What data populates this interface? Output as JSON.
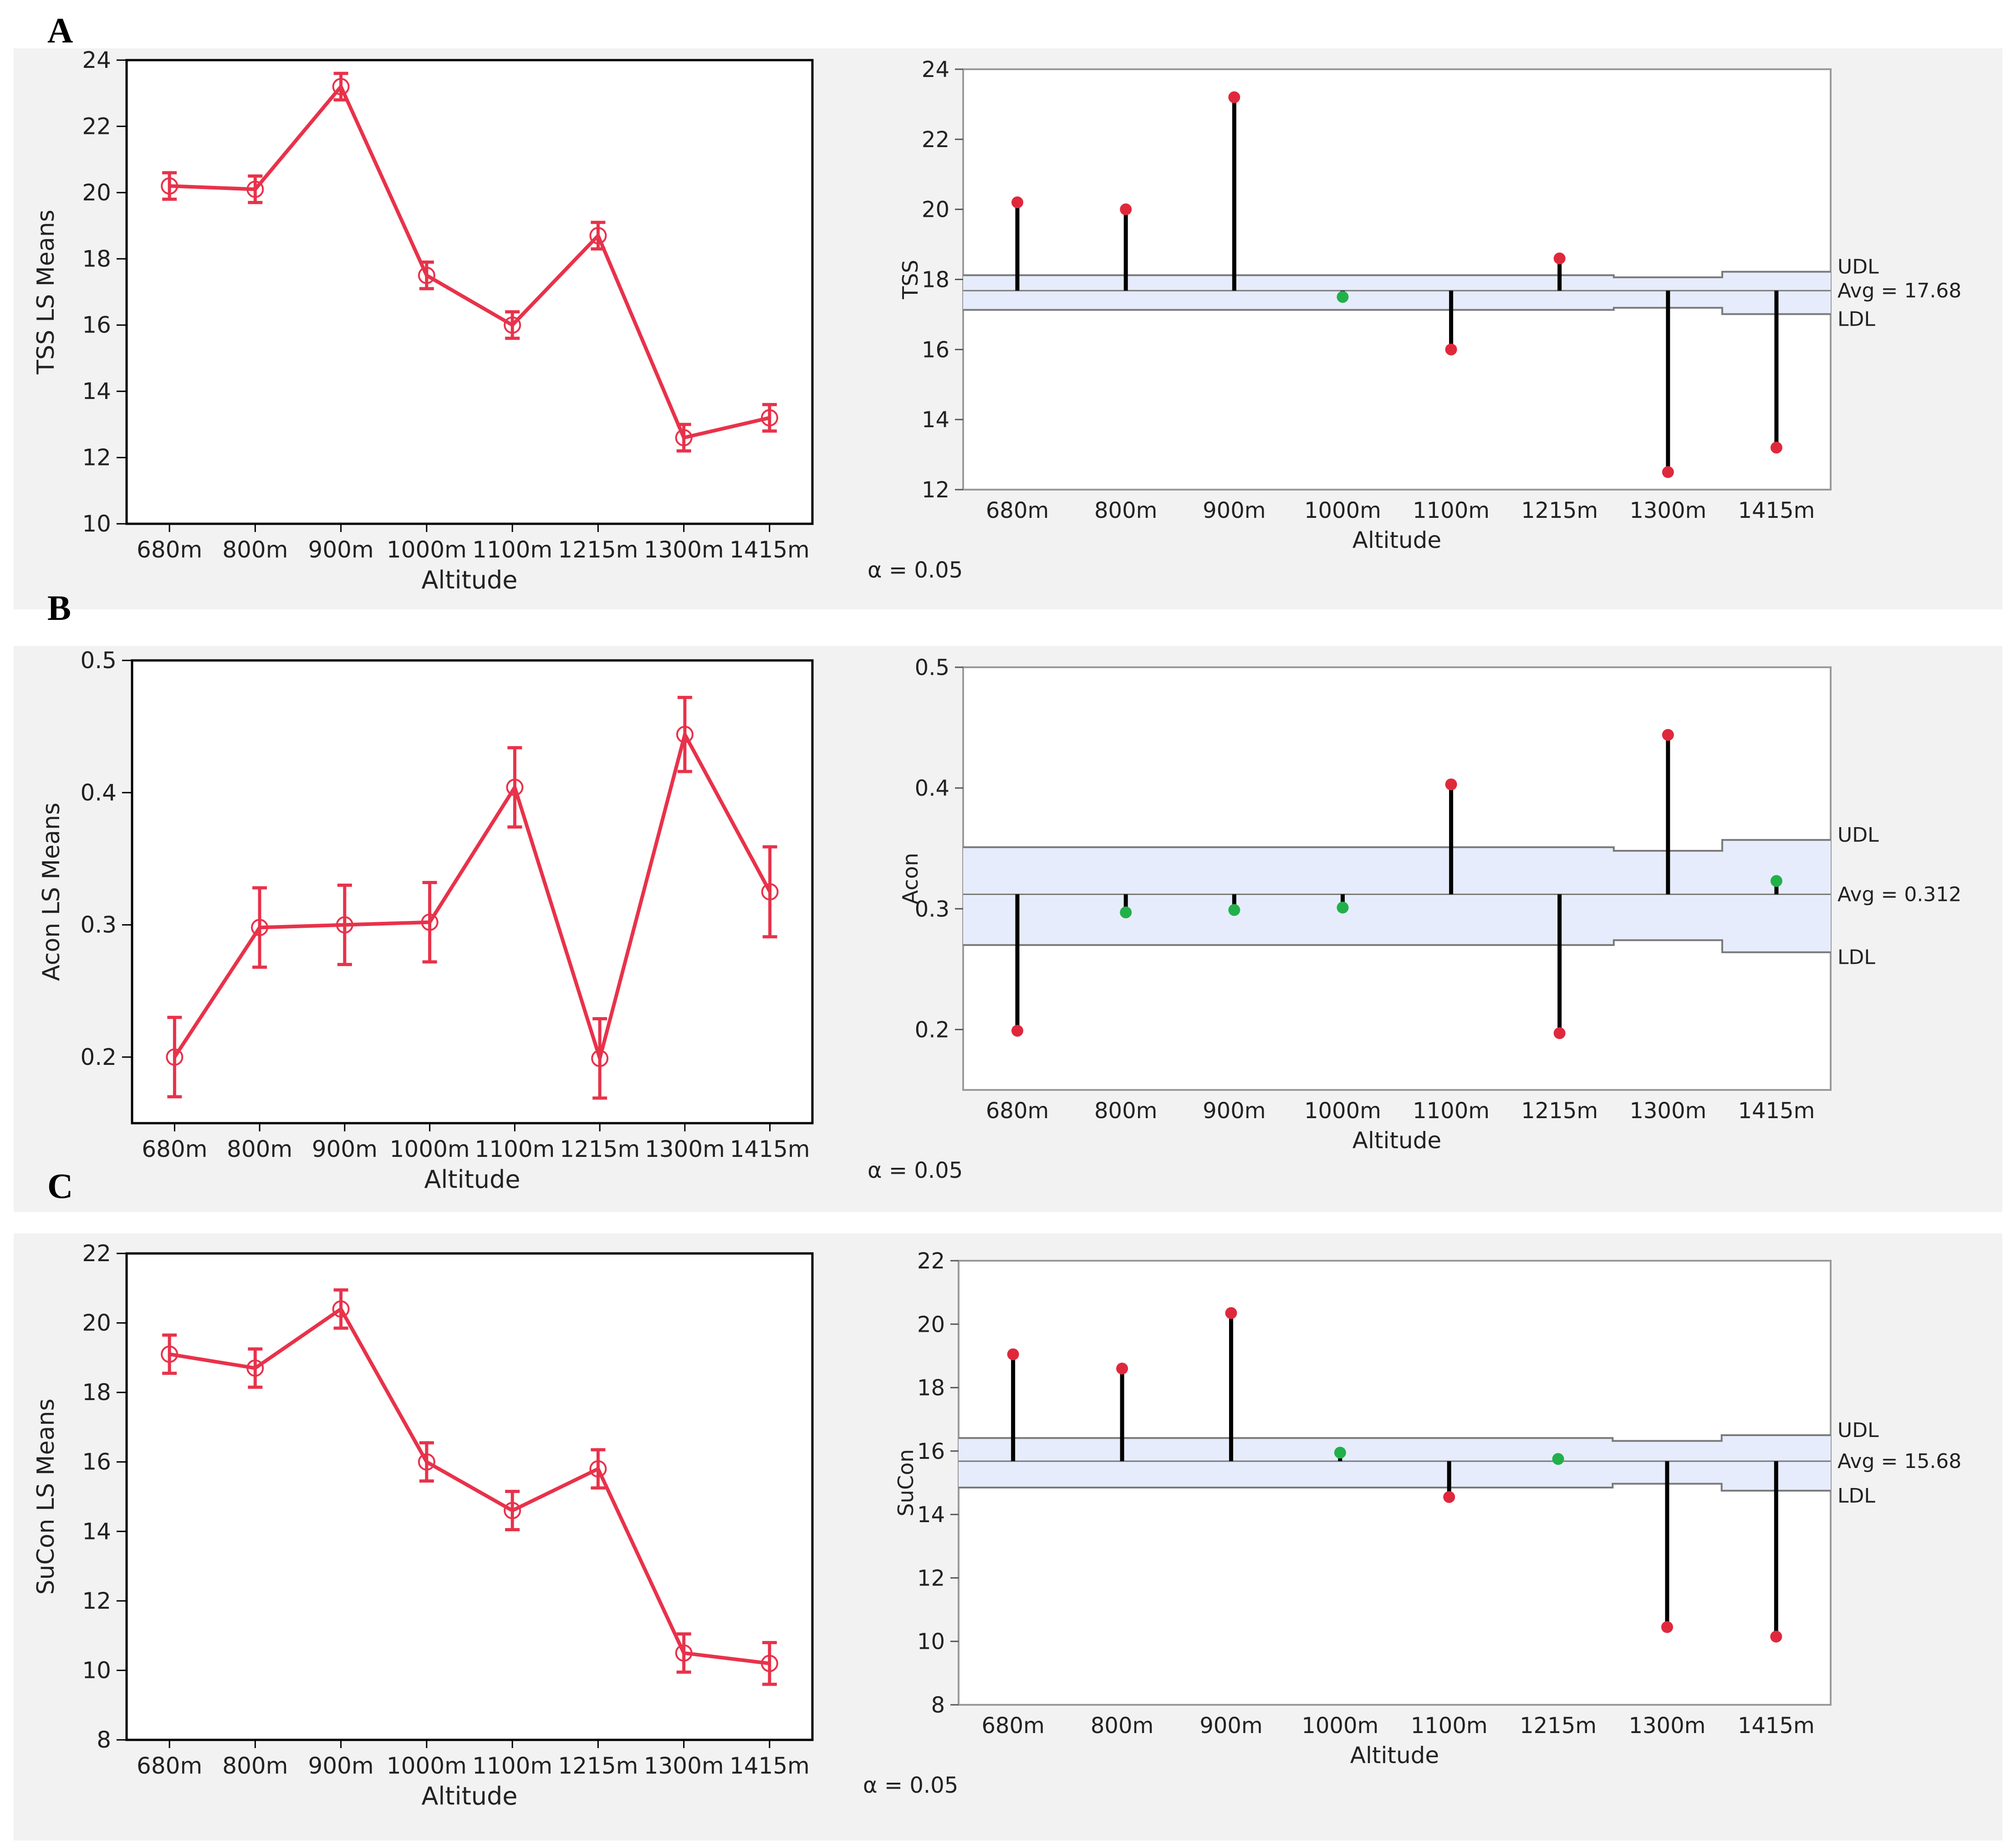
{
  "panels": [
    {
      "letter": "A",
      "ls_means": {
        "ylabel": "TSS LS Means",
        "xlabel": "Altitude",
        "ylim": [
          10,
          24
        ],
        "yticks": [
          10,
          12,
          14,
          16,
          18,
          20,
          22,
          24
        ],
        "categories": [
          "680m",
          "800m",
          "900m",
          "1000m",
          "1100m",
          "1215m",
          "1300m",
          "1415m"
        ],
        "values": [
          20.2,
          20.1,
          23.2,
          17.5,
          16.0,
          18.7,
          12.6,
          13.2
        ],
        "error": [
          0.4,
          0.4,
          0.4,
          0.4,
          0.4,
          0.4,
          0.4,
          0.4
        ]
      },
      "anom": {
        "ylabel": "TSS",
        "xlabel": "Altitude",
        "ylim": [
          12,
          24
        ],
        "yticks": [
          12,
          14,
          16,
          18,
          20,
          22,
          24
        ],
        "categories": [
          "680m",
          "800m",
          "900m",
          "1000m",
          "1100m",
          "1215m",
          "1300m",
          "1415m"
        ],
        "values": [
          20.2,
          20.0,
          23.2,
          17.5,
          16.0,
          18.6,
          12.5,
          13.2
        ],
        "avg": 17.68,
        "udl": [
          18.12,
          18.12,
          18.12,
          18.12,
          18.12,
          18.12,
          18.06,
          18.22
        ],
        "ldl": [
          17.13,
          17.13,
          17.13,
          17.13,
          17.13,
          17.13,
          17.19,
          17.01
        ],
        "udl_label": "UDL",
        "avg_label": "Avg = 17.68",
        "ldl_label": "LDL",
        "alpha_label": "α = 0.05"
      }
    },
    {
      "letter": "B",
      "ls_means": {
        "ylabel": "Acon LS Means",
        "xlabel": "Altitude",
        "ylim": [
          0.15,
          0.5
        ],
        "yticks": [
          0.2,
          0.3,
          0.4,
          0.5
        ],
        "categories": [
          "680m",
          "800m",
          "900m",
          "1000m",
          "1100m",
          "1215m",
          "1300m",
          "1415m"
        ],
        "values": [
          0.2,
          0.298,
          0.3,
          0.302,
          0.404,
          0.199,
          0.444,
          0.325
        ],
        "error": [
          0.03,
          0.03,
          0.03,
          0.03,
          0.03,
          0.03,
          0.028,
          0.034
        ]
      },
      "anom": {
        "ylabel": "Acon",
        "xlabel": "Altitude",
        "ylim": [
          0.15,
          0.5
        ],
        "yticks": [
          0.2,
          0.3,
          0.4,
          0.5
        ],
        "categories": [
          "680m",
          "800m",
          "900m",
          "1000m",
          "1100m",
          "1215m",
          "1300m",
          "1415m"
        ],
        "values": [
          0.199,
          0.297,
          0.299,
          0.301,
          0.403,
          0.197,
          0.444,
          0.323
        ],
        "avg": 0.312,
        "udl": [
          0.351,
          0.351,
          0.351,
          0.351,
          0.351,
          0.351,
          0.348,
          0.357
        ],
        "ldl": [
          0.27,
          0.27,
          0.27,
          0.27,
          0.27,
          0.27,
          0.274,
          0.264
        ],
        "udl_label": "UDL",
        "avg_label": "Avg = 0.312",
        "ldl_label": "LDL",
        "alpha_label": "α = 0.05"
      }
    },
    {
      "letter": "C",
      "ls_means": {
        "ylabel": "SuCon LS Means",
        "xlabel": "Altitude",
        "ylim": [
          8,
          22
        ],
        "yticks": [
          8,
          10,
          12,
          14,
          16,
          18,
          20,
          22
        ],
        "categories": [
          "680m",
          "800m",
          "900m",
          "1000m",
          "1100m",
          "1215m",
          "1300m",
          "1415m"
        ],
        "values": [
          19.1,
          18.7,
          20.4,
          16.0,
          14.6,
          15.8,
          10.5,
          10.2
        ],
        "error": [
          0.55,
          0.55,
          0.55,
          0.55,
          0.55,
          0.55,
          0.55,
          0.6
        ]
      },
      "anom": {
        "ylabel": "SuCon",
        "xlabel": "Altitude",
        "ylim": [
          8,
          22
        ],
        "yticks": [
          8,
          10,
          12,
          14,
          16,
          18,
          20,
          22
        ],
        "categories": [
          "680m",
          "800m",
          "900m",
          "1000m",
          "1100m",
          "1215m",
          "1300m",
          "1415m"
        ],
        "values": [
          19.05,
          18.6,
          20.35,
          15.95,
          14.55,
          15.75,
          10.45,
          10.15
        ],
        "avg": 15.68,
        "udl": [
          16.41,
          16.41,
          16.41,
          16.41,
          16.41,
          16.41,
          16.32,
          16.5
        ],
        "ldl": [
          14.85,
          14.85,
          14.85,
          14.85,
          14.85,
          14.85,
          14.97,
          14.75
        ],
        "udl_label": "UDL",
        "avg_label": "Avg = 15.68",
        "ldl_label": "LDL",
        "alpha_label": "α = 0.05"
      }
    }
  ],
  "colors": {
    "line": "#e8324a",
    "point_out": "#e0283c",
    "point_in": "#22b04a",
    "band": "#e6ecfb",
    "band_line": "#7a7a7a",
    "needle": "#000000"
  }
}
